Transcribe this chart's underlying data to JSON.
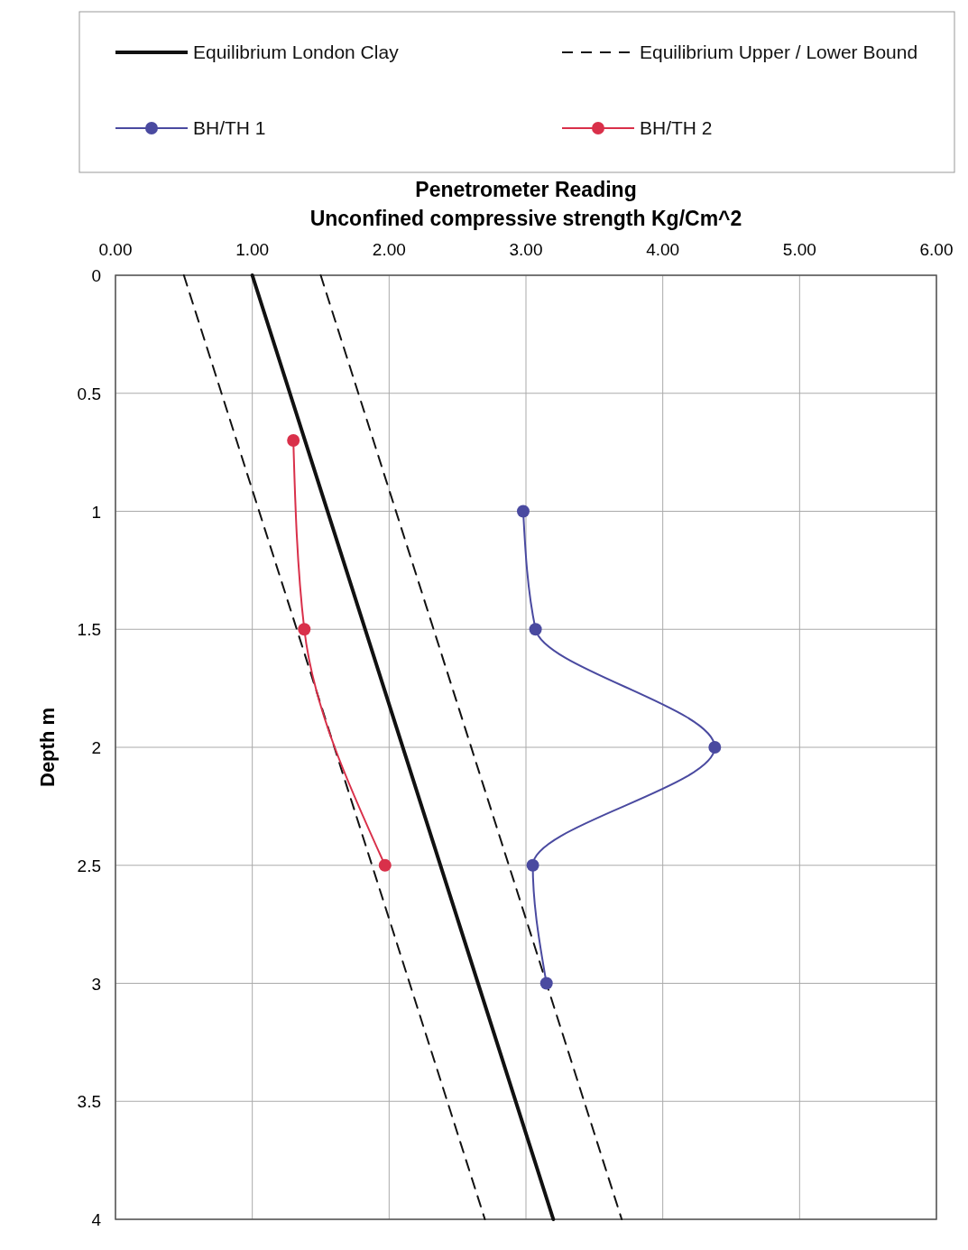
{
  "chart_data": {
    "type": "line",
    "title": "Penetrometer Reading",
    "xlabel": "Unconfined compressive strength Kg/Cm^2",
    "ylabel": "Depth m",
    "xlim": [
      0,
      6
    ],
    "xticks": [
      {
        "value": 0,
        "label": "0.00"
      },
      {
        "value": 1,
        "label": "1.00"
      },
      {
        "value": 2,
        "label": "2.00"
      },
      {
        "value": 3,
        "label": "3.00"
      },
      {
        "value": 4,
        "label": "4.00"
      },
      {
        "value": 5,
        "label": "5.00"
      },
      {
        "value": 6,
        "label": "6.00"
      }
    ],
    "ylim": [
      4,
      0
    ],
    "yticks": [
      0,
      0.5,
      1,
      1.5,
      2,
      2.5,
      3,
      3.5,
      4
    ],
    "grid": true,
    "legend": "top",
    "series": [
      {
        "name": "Equilibrium London Clay",
        "color": "#111111",
        "line_style": "solid",
        "marker": "none",
        "x": [
          1.0,
          3.2
        ],
        "values": [
          0,
          4
        ]
      },
      {
        "name": "Equilibrium Upper / Lower Bound",
        "color": "#111111",
        "line_style": "dashed",
        "marker": "none",
        "x": [
          1.5,
          3.7
        ],
        "values": [
          0,
          4
        ]
      },
      {
        "color": "#111111",
        "line_style": "dashed",
        "marker": "none",
        "x": [
          0.5,
          2.7
        ],
        "values": [
          0,
          4
        ]
      },
      {
        "name": "BH/TH 1",
        "color": "#4a4aa0",
        "line_style": "solid",
        "marker": "circle",
        "x": [
          2.98,
          3.07,
          4.38,
          3.05,
          3.15
        ],
        "values": [
          1.0,
          1.5,
          2.0,
          2.5,
          3.0
        ]
      },
      {
        "name": "BH/TH 2",
        "color": "#d9304a",
        "line_style": "solid",
        "marker": "circle",
        "x": [
          1.3,
          1.38,
          1.97
        ],
        "values": [
          0.7,
          1.5,
          2.5
        ]
      }
    ]
  }
}
